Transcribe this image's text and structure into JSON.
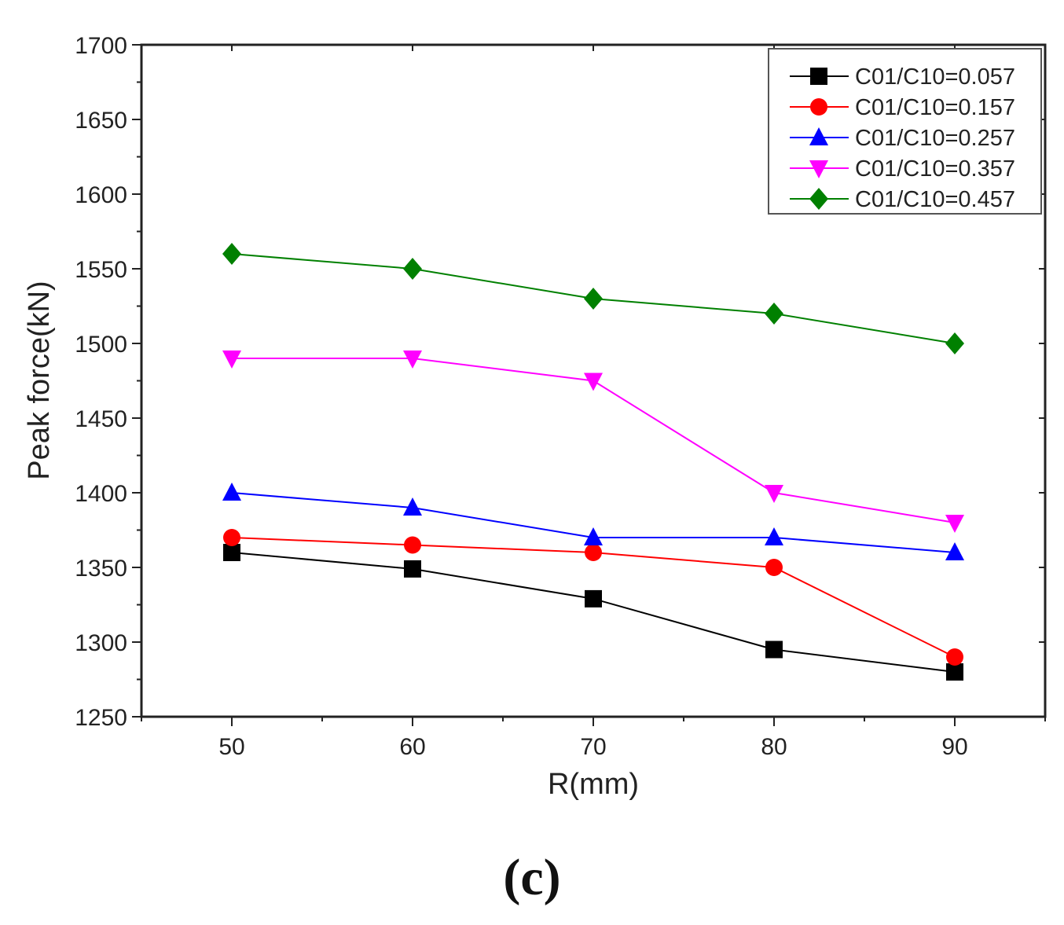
{
  "chart_data": {
    "type": "line",
    "title": "",
    "xlabel": "R(mm)",
    "ylabel": "Peak force(kN)",
    "x": [
      50,
      60,
      70,
      80,
      90
    ],
    "xlim": [
      45,
      95
    ],
    "ylim": [
      1250,
      1700
    ],
    "x_ticks": [
      50,
      60,
      70,
      80,
      90
    ],
    "y_ticks": [
      1250,
      1300,
      1350,
      1400,
      1450,
      1500,
      1550,
      1600,
      1650,
      1700
    ],
    "grid": false,
    "legend_position": "top-right",
    "series": [
      {
        "name": "C01/C10=0.057",
        "color": "#000000",
        "marker": "square",
        "values": [
          1360,
          1349,
          1329,
          1295,
          1280
        ]
      },
      {
        "name": "C01/C10=0.157",
        "color": "#ff0000",
        "marker": "circle",
        "values": [
          1370,
          1365,
          1360,
          1350,
          1290
        ]
      },
      {
        "name": "C01/C10=0.257",
        "color": "#0000ff",
        "marker": "triangle-up",
        "values": [
          1400,
          1390,
          1370,
          1370,
          1360
        ]
      },
      {
        "name": "C01/C10=0.357",
        "color": "#ff00ff",
        "marker": "triangle-down",
        "values": [
          1490,
          1490,
          1475,
          1400,
          1380
        ]
      },
      {
        "name": "C01/C10=0.457",
        "color": "#008000",
        "marker": "diamond",
        "values": [
          1560,
          1550,
          1530,
          1520,
          1500
        ]
      }
    ]
  },
  "caption": {
    "label": "(c)"
  }
}
